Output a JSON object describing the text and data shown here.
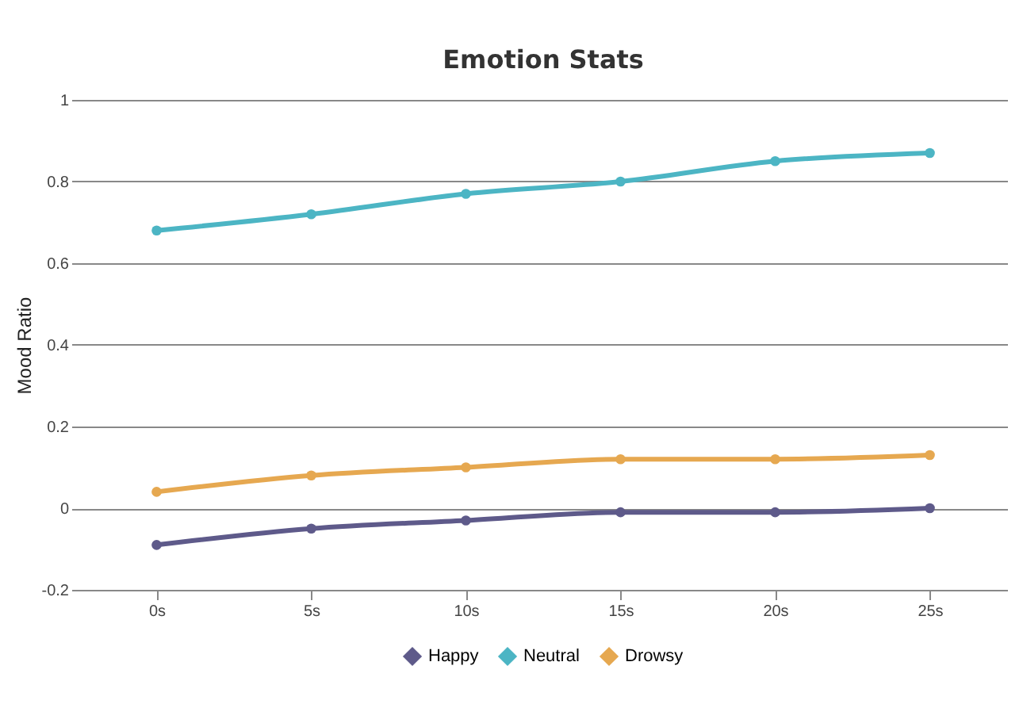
{
  "chart_data": {
    "type": "line",
    "title": "Emotion Stats",
    "ylabel": "Mood Ratio",
    "categories": [
      "0s",
      "5s",
      "10s",
      "15s",
      "20s",
      "25s"
    ],
    "series": [
      {
        "name": "Happy",
        "color": "#5e5a8a",
        "values": [
          -0.09,
          -0.05,
          -0.03,
          -0.01,
          -0.01,
          0.0
        ]
      },
      {
        "name": "Neutral",
        "color": "#4cb5c4",
        "values": [
          0.68,
          0.72,
          0.77,
          0.8,
          0.85,
          0.87
        ]
      },
      {
        "name": "Drowsy",
        "color": "#e6a850",
        "values": [
          0.04,
          0.08,
          0.1,
          0.12,
          0.12,
          0.13
        ]
      }
    ],
    "ylim": [
      -0.2,
      1
    ],
    "yticks": [
      -0.2,
      0,
      0.2,
      0.4,
      0.6,
      0.8,
      1
    ],
    "grid": "y",
    "legend": "bottom",
    "marker": "circle",
    "line_style": "solid"
  }
}
